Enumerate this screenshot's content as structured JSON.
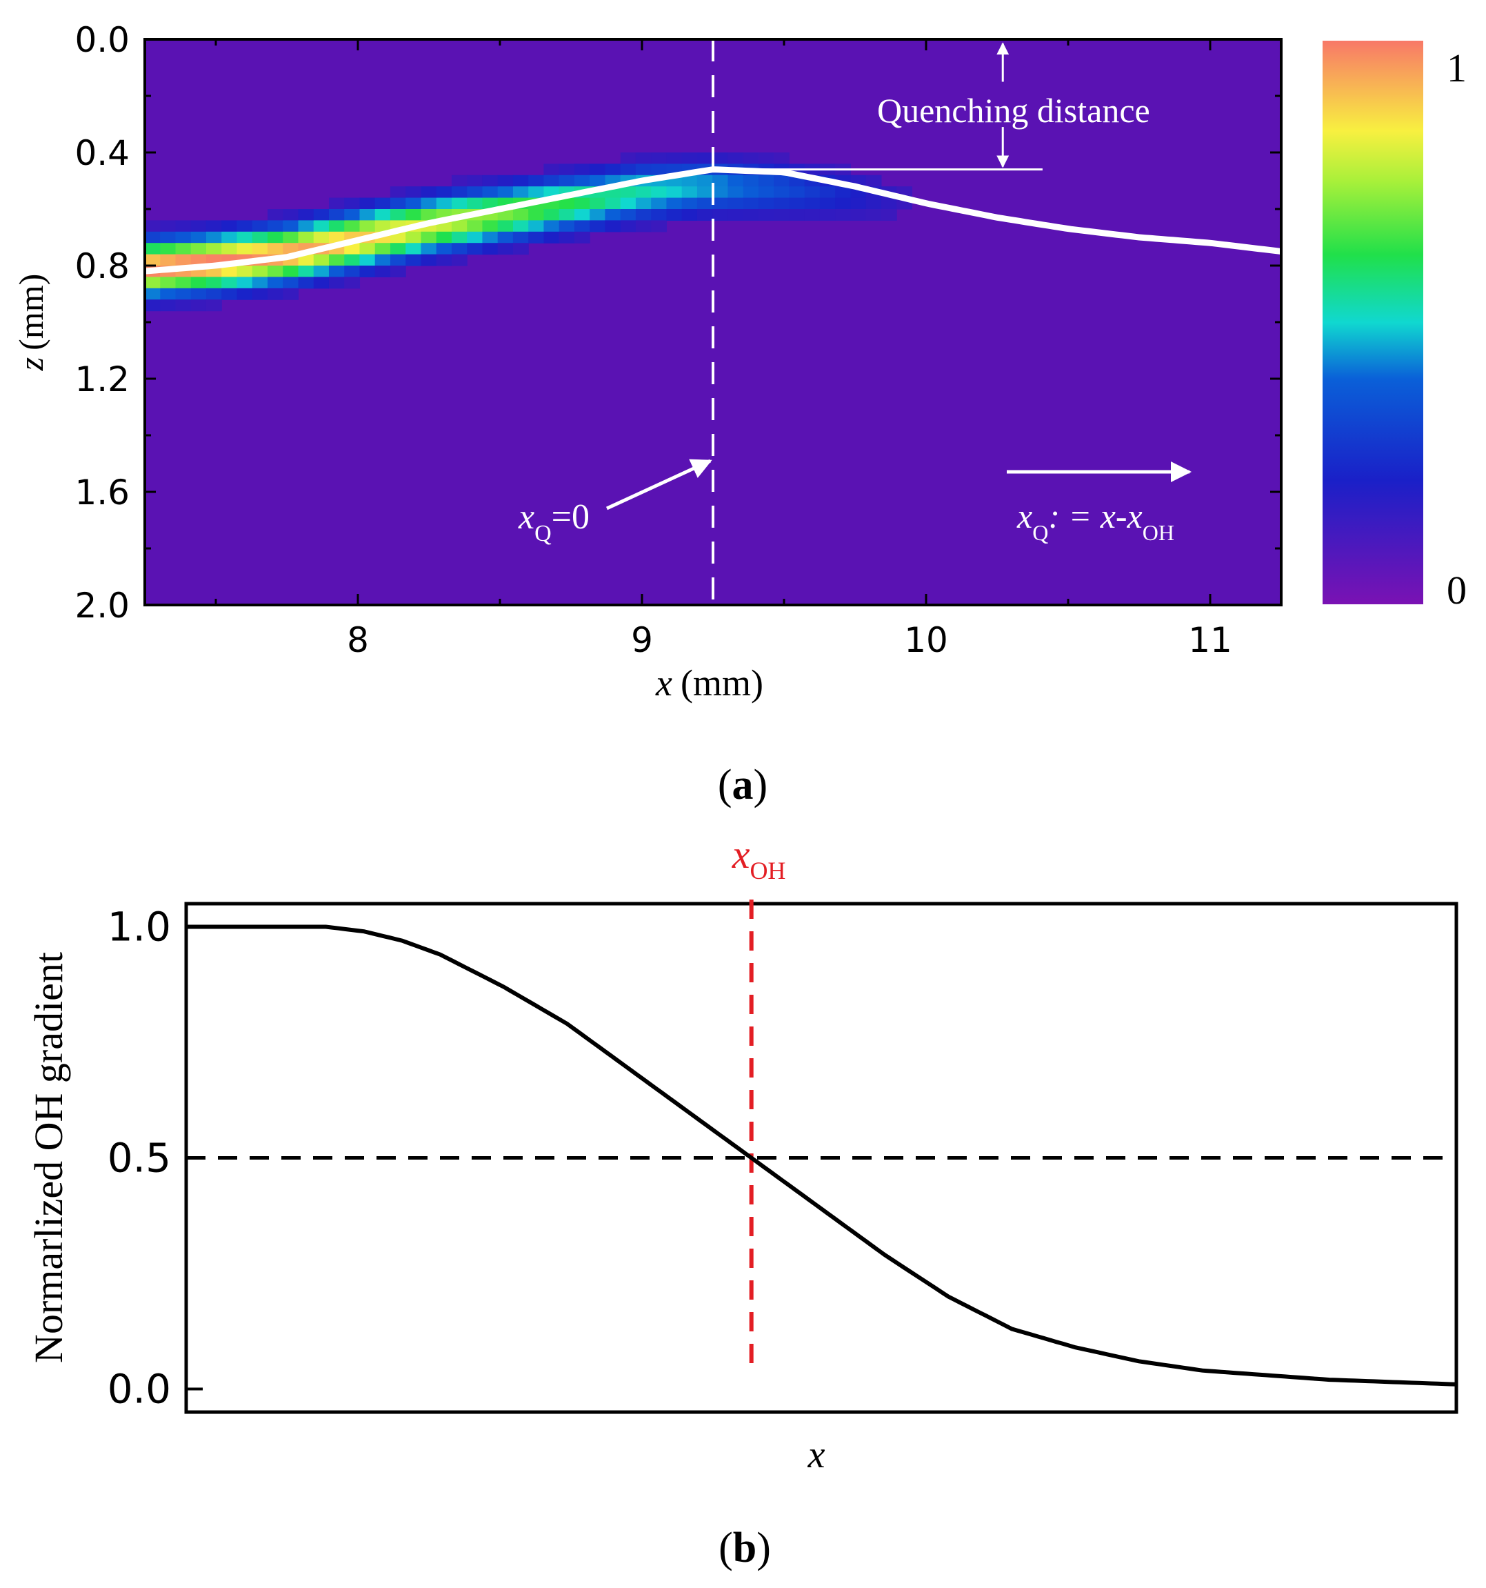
{
  "panel_a": {
    "label_open": "(",
    "label_letter": "a",
    "label_close": ")",
    "annotations": {
      "quenching": "Quenching distance",
      "xq_var": "x",
      "xq_sub": "Q",
      "xq_eq": "=0",
      "def_x": "x",
      "def_sub": "Q",
      "def_eq": ": = x-x",
      "def_sub2": "OH"
    },
    "colorbar": {
      "max_label": "1",
      "min_label": "0"
    }
  },
  "panel_b": {
    "label_open": "(",
    "label_letter": "b",
    "label_close": ")",
    "marker_var": "x",
    "marker_sub": "OH"
  },
  "colors": {
    "background": "#5a12b3",
    "ridge_curve": "#ffffff",
    "marker_line": "#e31e24",
    "curve": "#000000"
  },
  "chart_data": [
    {
      "type": "heatmap",
      "xlabel_var": "x",
      "xlabel_unit": "(mm)",
      "ylabel_var": "z",
      "ylabel_unit": "(mm)",
      "xlim": [
        7.25,
        11.25
      ],
      "ylim": [
        0.0,
        2.0
      ],
      "y_inverted": true,
      "xticks": [
        8,
        9,
        10,
        11
      ],
      "xtick_labels": [
        "8",
        "9",
        "10",
        "11"
      ],
      "yticks": [
        0.0,
        0.4,
        0.8,
        1.2,
        1.6,
        2.0
      ],
      "ytick_labels": [
        "0.0",
        "0.4",
        "0.8",
        "1.2",
        "1.6",
        "2.0"
      ],
      "colorbar_range": [
        0,
        1
      ],
      "band": {
        "x": [
          7.25,
          7.5,
          7.75,
          8.0,
          8.25,
          8.5,
          8.75,
          9.0,
          9.25,
          9.5,
          9.75,
          10.0
        ],
        "center_z": [
          0.81,
          0.79,
          0.76,
          0.71,
          0.66,
          0.62,
          0.58,
          0.54,
          0.52,
          0.53,
          0.55,
          0.58
        ],
        "half_width": [
          0.12,
          0.12,
          0.12,
          0.12,
          0.12,
          0.12,
          0.12,
          0.12,
          0.12,
          0.12,
          0.12,
          0.12
        ],
        "peak": [
          1.0,
          1.0,
          0.97,
          0.92,
          0.82,
          0.72,
          0.62,
          0.52,
          0.42,
          0.3,
          0.18,
          0.06
        ]
      },
      "ridge_curve": {
        "x": [
          7.25,
          7.5,
          7.75,
          8.0,
          8.25,
          8.5,
          8.75,
          9.0,
          9.25,
          9.5,
          9.75,
          10.0,
          10.25,
          10.5,
          10.75,
          11.0,
          11.25
        ],
        "z": [
          0.82,
          0.8,
          0.77,
          0.71,
          0.65,
          0.6,
          0.55,
          0.5,
          0.46,
          0.47,
          0.52,
          0.58,
          0.63,
          0.67,
          0.7,
          0.72,
          0.75
        ]
      },
      "x_oh": 9.25,
      "quenching_distance_z": 0.46
    },
    {
      "type": "line",
      "xlabel": "x",
      "ylabel": "Normarlized OH gradient",
      "xlim": [
        0.0,
        1.0
      ],
      "ylim": [
        -0.05,
        1.05
      ],
      "yticks": [
        0.0,
        0.5,
        1.0
      ],
      "ytick_labels": [
        "0.0",
        "0.5",
        "1.0"
      ],
      "threshold": 0.5,
      "x_oh": 0.445,
      "x": [
        0.0,
        0.05,
        0.08,
        0.11,
        0.14,
        0.17,
        0.2,
        0.25,
        0.3,
        0.35,
        0.4,
        0.445,
        0.5,
        0.55,
        0.6,
        0.65,
        0.7,
        0.75,
        0.8,
        0.85,
        0.9,
        0.95,
        1.0
      ],
      "y": [
        1.0,
        1.0,
        1.0,
        1.0,
        0.99,
        0.97,
        0.94,
        0.87,
        0.79,
        0.69,
        0.59,
        0.5,
        0.39,
        0.29,
        0.2,
        0.13,
        0.09,
        0.06,
        0.04,
        0.03,
        0.02,
        0.015,
        0.01
      ]
    }
  ]
}
